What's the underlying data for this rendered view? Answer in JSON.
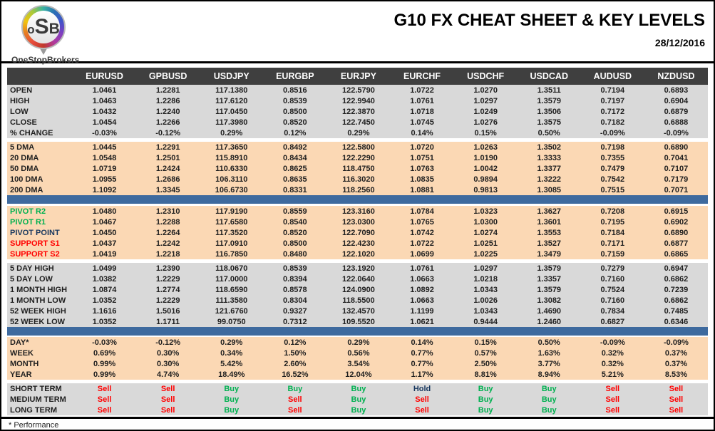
{
  "header": {
    "logo": {
      "text_o": "o",
      "text_s": "S",
      "text_b": "B",
      "brand": "OneStopBrokers"
    },
    "title": "G10 FX CHEAT SHEET & KEY LEVELS",
    "date": "28/12/2016"
  },
  "colors": {
    "header_bg": "#3F3F3F",
    "gray": "#D9D9D9",
    "peach": "#FBD8B4",
    "blue_bar": "#3E6A9E",
    "green": "#00B050",
    "red": "#FF0000",
    "navy": "#17375E"
  },
  "table": {
    "columns": [
      "EURUSD",
      "GPBUSD",
      "USDJPY",
      "EURGBP",
      "EURJPY",
      "EURCHF",
      "USDCHF",
      "USDCAD",
      "AUDUSD",
      "NZDUSD"
    ],
    "sections": [
      {
        "id": "ohlc",
        "bg": "gray",
        "divider_after": "gap",
        "rows": [
          {
            "label": "OPEN",
            "values": [
              "1.0461",
              "1.2281",
              "117.1380",
              "0.8516",
              "122.5790",
              "1.0722",
              "1.0270",
              "1.3511",
              "0.7194",
              "0.6893"
            ]
          },
          {
            "label": "HIGH",
            "values": [
              "1.0463",
              "1.2286",
              "117.6120",
              "0.8539",
              "122.9940",
              "1.0761",
              "1.0297",
              "1.3579",
              "0.7197",
              "0.6904"
            ]
          },
          {
            "label": "LOW",
            "values": [
              "1.0432",
              "1.2240",
              "117.0450",
              "0.8500",
              "122.3870",
              "1.0718",
              "1.0249",
              "1.3506",
              "0.7172",
              "0.6879"
            ]
          },
          {
            "label": "CLOSE",
            "values": [
              "1.0454",
              "1.2266",
              "117.3980",
              "0.8520",
              "122.7450",
              "1.0745",
              "1.0276",
              "1.3575",
              "0.7182",
              "0.6888"
            ]
          },
          {
            "label": "% CHANGE",
            "values": [
              "-0.03%",
              "-0.12%",
              "0.29%",
              "0.12%",
              "0.29%",
              "0.14%",
              "0.15%",
              "0.50%",
              "-0.09%",
              "-0.09%"
            ]
          }
        ]
      },
      {
        "id": "dma",
        "bg": "peach",
        "divider_after": "bar-gap",
        "rows": [
          {
            "label": "5 DMA",
            "values": [
              "1.0445",
              "1.2291",
              "117.3650",
              "0.8492",
              "122.5800",
              "1.0720",
              "1.0263",
              "1.3502",
              "0.7198",
              "0.6890"
            ]
          },
          {
            "label": "20 DMA",
            "values": [
              "1.0548",
              "1.2501",
              "115.8910",
              "0.8434",
              "122.2290",
              "1.0751",
              "1.0190",
              "1.3333",
              "0.7355",
              "0.7041"
            ]
          },
          {
            "label": "50 DMA",
            "values": [
              "1.0719",
              "1.2424",
              "110.6330",
              "0.8625",
              "118.4750",
              "1.0763",
              "1.0042",
              "1.3377",
              "0.7479",
              "0.7107"
            ]
          },
          {
            "label": "100 DMA",
            "values": [
              "1.0955",
              "1.2686",
              "106.3110",
              "0.8635",
              "116.3020",
              "1.0835",
              "0.9894",
              "1.3222",
              "0.7542",
              "0.7179"
            ]
          },
          {
            "label": "200 DMA",
            "values": [
              "1.1092",
              "1.3345",
              "106.6730",
              "0.8331",
              "118.2560",
              "1.0881",
              "0.9813",
              "1.3085",
              "0.7515",
              "0.7071"
            ]
          }
        ]
      },
      {
        "id": "pivots",
        "bg": "peach",
        "divider_after": "gap",
        "rows": [
          {
            "label": "PIVOT R2",
            "label_color": "#00B050",
            "values": [
              "1.0480",
              "1.2310",
              "117.9190",
              "0.8559",
              "123.3160",
              "1.0784",
              "1.0323",
              "1.3627",
              "0.7208",
              "0.6915"
            ]
          },
          {
            "label": "PIVOT R1",
            "label_color": "#00B050",
            "values": [
              "1.0467",
              "1.2288",
              "117.6580",
              "0.8540",
              "123.0300",
              "1.0765",
              "1.0300",
              "1.3601",
              "0.7195",
              "0.6902"
            ]
          },
          {
            "label": "PIVOT POINT",
            "label_color": "#17375E",
            "values": [
              "1.0450",
              "1.2264",
              "117.3520",
              "0.8520",
              "122.7090",
              "1.0742",
              "1.0274",
              "1.3553",
              "0.7184",
              "0.6890"
            ]
          },
          {
            "label": "SUPPORT S1",
            "label_color": "#FF0000",
            "values": [
              "1.0437",
              "1.2242",
              "117.0910",
              "0.8500",
              "122.4230",
              "1.0722",
              "1.0251",
              "1.3527",
              "0.7171",
              "0.6877"
            ]
          },
          {
            "label": "SUPPORT S2",
            "label_color": "#FF0000",
            "values": [
              "1.0419",
              "1.2218",
              "116.7850",
              "0.8480",
              "122.1020",
              "1.0699",
              "1.0225",
              "1.3479",
              "0.7159",
              "0.6865"
            ]
          }
        ]
      },
      {
        "id": "ranges",
        "bg": "gray",
        "divider_after": "bar",
        "rows": [
          {
            "label": "5 DAY HIGH",
            "values": [
              "1.0499",
              "1.2390",
              "118.0670",
              "0.8539",
              "123.1920",
              "1.0761",
              "1.0297",
              "1.3579",
              "0.7279",
              "0.6947"
            ]
          },
          {
            "label": "5 DAY LOW",
            "values": [
              "1.0382",
              "1.2229",
              "117.0000",
              "0.8394",
              "122.0640",
              "1.0663",
              "1.0218",
              "1.3357",
              "0.7160",
              "0.6862"
            ]
          },
          {
            "label": "1 MONTH HIGH",
            "values": [
              "1.0874",
              "1.2774",
              "118.6590",
              "0.8578",
              "124.0900",
              "1.0892",
              "1.0343",
              "1.3579",
              "0.7524",
              "0.7239"
            ]
          },
          {
            "label": "1 MONTH LOW",
            "values": [
              "1.0352",
              "1.2229",
              "111.3580",
              "0.8304",
              "118.5500",
              "1.0663",
              "1.0026",
              "1.3082",
              "0.7160",
              "0.6862"
            ]
          },
          {
            "label": "52 WEEK HIGH",
            "values": [
              "1.1616",
              "1.5016",
              "121.6760",
              "0.9327",
              "132.4570",
              "1.1199",
              "1.0343",
              "1.4690",
              "0.7834",
              "0.7485"
            ]
          },
          {
            "label": "52 WEEK LOW",
            "values": [
              "1.0352",
              "1.1711",
              "99.0750",
              "0.7312",
              "109.5520",
              "1.0621",
              "0.9444",
              "1.2460",
              "0.6827",
              "0.6346"
            ]
          }
        ]
      },
      {
        "id": "performance",
        "bg": "peach",
        "divider_after": "gap",
        "rows": [
          {
            "label": "DAY*",
            "values": [
              "-0.03%",
              "-0.12%",
              "0.29%",
              "0.12%",
              "0.29%",
              "0.14%",
              "0.15%",
              "0.50%",
              "-0.09%",
              "-0.09%"
            ]
          },
          {
            "label": "WEEK",
            "values": [
              "0.69%",
              "0.30%",
              "0.34%",
              "1.50%",
              "0.56%",
              "0.77%",
              "0.57%",
              "1.63%",
              "0.32%",
              "0.37%"
            ]
          },
          {
            "label": "MONTH",
            "values": [
              "0.99%",
              "0.30%",
              "5.42%",
              "2.60%",
              "3.54%",
              "0.77%",
              "2.50%",
              "3.77%",
              "0.32%",
              "0.37%"
            ]
          },
          {
            "label": "YEAR",
            "values": [
              "0.99%",
              "4.74%",
              "18.49%",
              "16.52%",
              "12.04%",
              "1.17%",
              "8.81%",
              "8.94%",
              "5.21%",
              "8.53%"
            ]
          }
        ]
      },
      {
        "id": "signals",
        "bg": "gray",
        "divider_after": null,
        "rows": [
          {
            "label": "SHORT TERM",
            "values": [
              "Sell",
              "Sell",
              "Buy",
              "Buy",
              "Buy",
              "Hold",
              "Buy",
              "Buy",
              "Sell",
              "Sell"
            ]
          },
          {
            "label": "MEDIUM TERM",
            "values": [
              "Sell",
              "Sell",
              "Buy",
              "Sell",
              "Buy",
              "Sell",
              "Buy",
              "Buy",
              "Sell",
              "Sell"
            ]
          },
          {
            "label": "LONG TERM",
            "values": [
              "Sell",
              "Sell",
              "Buy",
              "Sell",
              "Buy",
              "Sell",
              "Buy",
              "Buy",
              "Sell",
              "Sell"
            ]
          }
        ]
      }
    ]
  },
  "footer": {
    "note": "* Performance"
  }
}
